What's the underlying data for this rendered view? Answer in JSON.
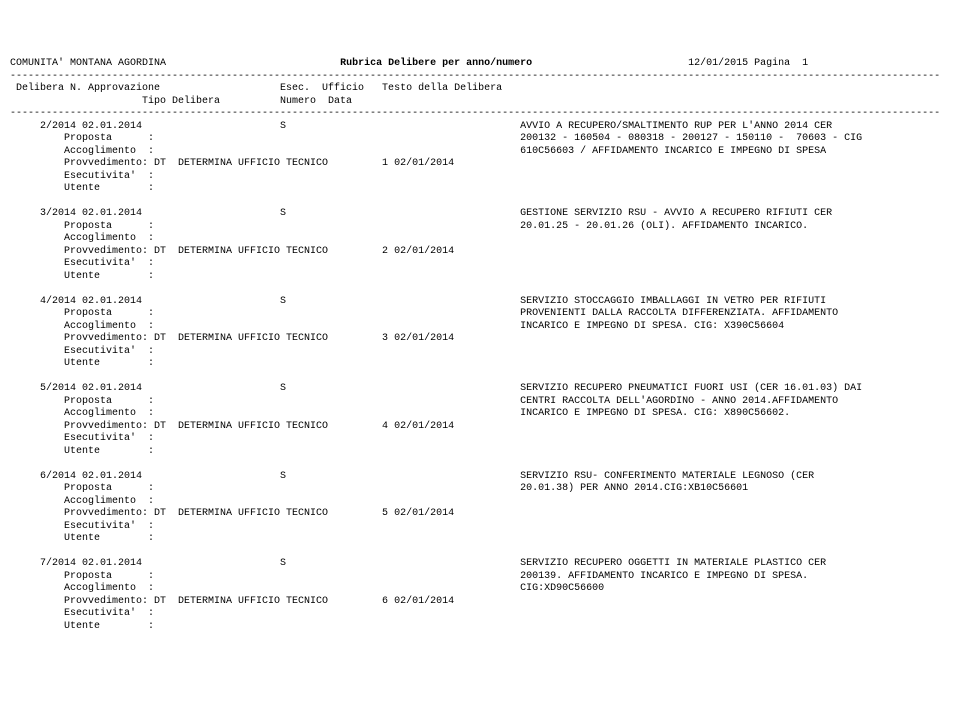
{
  "page": {
    "org": "COMUNITA' MONTANA AGORDINA",
    "title": "Rubrica Delibere per anno/numero",
    "date": "12/01/2015",
    "page_label": "Pagina",
    "page_num": "1"
  },
  "colhdr": {
    "c1": "Delibera N. Approvazione",
    "c2": "Esec.",
    "c3": "Ufficio",
    "c4": "Testo della Delibera",
    "c5": "Tipo Delibera",
    "c6": "Numero",
    "c7": "Data"
  },
  "labels": {
    "proposta": "Proposta      :",
    "accoglimento": "Accoglimento  :",
    "provvedimento": "Provvedimento:",
    "esecutivita": "Esecutivita'  :",
    "utente": "Utente        :"
  },
  "entries": [
    {
      "id": "2/2014 02.01.2014",
      "esec": "S",
      "text": [
        "AVVIO A RECUPERO/SMALTIMENTO RUP PER L'ANNO 2014 CER",
        "200132 - 160504 - 080318 - 200127 - 150110 -  70603 - CIG",
        "610C56603 / AFFIDAMENTO INCARICO E IMPEGNO DI SPESA"
      ],
      "prov": "DT  DETERMINA UFFICIO TECNICO         1 02/01/2014"
    },
    {
      "id": "3/2014 02.01.2014",
      "esec": "S",
      "text": [
        "GESTIONE SERVIZIO RSU - AVVIO A RECUPERO RIFIUTI CER",
        "20.01.25 - 20.01.26 (OLI). AFFIDAMENTO INCARICO."
      ],
      "prov": "DT  DETERMINA UFFICIO TECNICO         2 02/01/2014"
    },
    {
      "id": "4/2014 02.01.2014",
      "esec": "S",
      "text": [
        "SERVIZIO STOCCAGGIO IMBALLAGGI IN VETRO PER RIFIUTI",
        "PROVENIENTI DALLA RACCOLTA DIFFERENZIATA. AFFIDAMENTO",
        "INCARICO E IMPEGNO DI SPESA. CIG: X390C56604"
      ],
      "prov": "DT  DETERMINA UFFICIO TECNICO         3 02/01/2014"
    },
    {
      "id": "5/2014 02.01.2014",
      "esec": "S",
      "text": [
        "SERVIZIO RECUPERO PNEUMATICI FUORI USI (CER 16.01.03) DAI",
        "CENTRI RACCOLTA DELL'AGORDINO - ANNO 2014.AFFIDAMENTO",
        "INCARICO E IMPEGNO DI SPESA. CIG: X890C56602."
      ],
      "prov": "DT  DETERMINA UFFICIO TECNICO         4 02/01/2014"
    },
    {
      "id": "6/2014 02.01.2014",
      "esec": "S",
      "text": [
        "SERVIZIO RSU- CONFERIMENTO MATERIALE LEGNOSO (CER",
        "20.01.38) PER ANNO 2014.CIG:XB10C56601"
      ],
      "prov": "DT  DETERMINA UFFICIO TECNICO         5 02/01/2014"
    },
    {
      "id": "7/2014 02.01.2014",
      "esec": "S",
      "text": [
        "SERVIZIO RECUPERO OGGETTI IN MATERIALE PLASTICO CER",
        "200139. AFFIDAMENTO INCARICO E IMPEGNO DI SPESA.",
        "CIG:XD90C56600"
      ],
      "prov": "DT  DETERMINA UFFICIO TECNICO         6 02/01/2014"
    }
  ],
  "layout": {
    "rule_len": 155,
    "col_id": 5,
    "col_esec": 45,
    "col_text": 85,
    "col_tipo": 22,
    "col_prop": 9,
    "col_prov_val": 24
  }
}
